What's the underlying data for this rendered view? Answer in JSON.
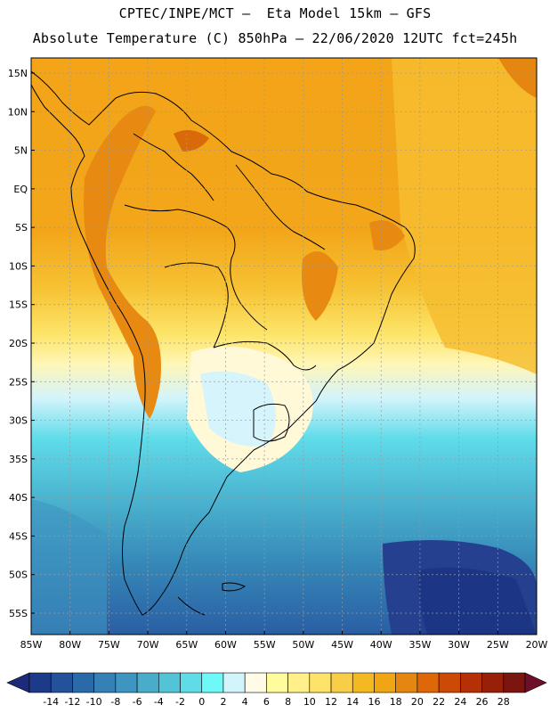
{
  "header": {
    "line1": "CPTEC/INPE/MCT –  Eta Model 15km – GFS",
    "line2": "Absolute Temperature (C) 850hPa – 22/06/2020 12UTC fct=245h"
  },
  "map": {
    "lat_labels": [
      "15N",
      "10N",
      "5N",
      "EQ",
      "5S",
      "10S",
      "15S",
      "20S",
      "25S",
      "30S",
      "35S",
      "40S",
      "45S",
      "50S",
      "55S"
    ],
    "lat_values": [
      15,
      10,
      5,
      0,
      -5,
      -10,
      -15,
      -20,
      -25,
      -30,
      -35,
      -40,
      -45,
      -50,
      -55
    ],
    "lon_labels": [
      "85W",
      "80W",
      "75W",
      "70W",
      "65W",
      "60W",
      "55W",
      "50W",
      "45W",
      "40W",
      "35W",
      "30W",
      "25W",
      "20W"
    ],
    "lon_values": [
      -85,
      -80,
      -75,
      -70,
      -65,
      -60,
      -55,
      -50,
      -45,
      -40,
      -35,
      -30,
      -25,
      -20
    ],
    "lon_range": [
      -85,
      -20
    ],
    "lat_range": [
      -58,
      17
    ],
    "grid": true
  },
  "colorbar": {
    "labels": [
      "-14",
      "-12",
      "-10",
      "-8",
      "-6",
      "-4",
      "-2",
      "0",
      "2",
      "4",
      "6",
      "8",
      "10",
      "12",
      "14",
      "16",
      "18",
      "20",
      "22",
      "24",
      "26",
      "28"
    ],
    "colors": [
      "#1d3a8a",
      "#24519a",
      "#2a6aa8",
      "#3581b6",
      "#3f95c1",
      "#4aaccb",
      "#53c4d8",
      "#60dce8",
      "#6ff8f8",
      "#d2f4fb",
      "#fffbe6",
      "#fffc9e",
      "#fff08a",
      "#fde36a",
      "#f8cd48",
      "#f4b820",
      "#f0a514",
      "#e4860f",
      "#de6707",
      "#cc4a06",
      "#b53005",
      "#992008",
      "#7a150f"
    ],
    "arrow_left": "#1d2a7a",
    "arrow_right": "#6e0f2a"
  }
}
